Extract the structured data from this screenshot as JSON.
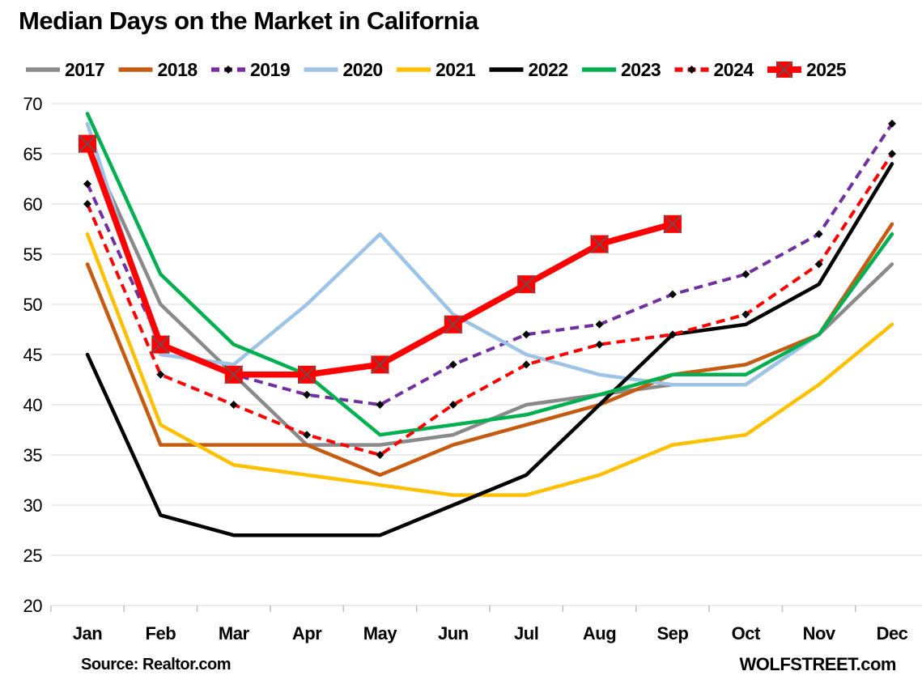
{
  "title": "Median Days on the Market in California",
  "footer": {
    "source": "Source: Realtor.com",
    "brand": "WOLFSTREET.com"
  },
  "chart_data": {
    "type": "line",
    "title": "Median Days on the Market in California",
    "xlabel": "",
    "ylabel": "",
    "categories": [
      "Jan",
      "Feb",
      "Mar",
      "Apr",
      "May",
      "Jun",
      "Jul",
      "Aug",
      "Sep",
      "Oct",
      "Nov",
      "Dec"
    ],
    "ylim": [
      20,
      70
    ],
    "ytick_step": 5,
    "grid": true,
    "legend_position": "top",
    "grid_color": "#D9D9D9",
    "tick_color": "#BFBFBF",
    "series": [
      {
        "name": "2017",
        "color": "#8A8A8A",
        "style": "solid",
        "width": 4.5,
        "marker": "none",
        "values": [
          66,
          50,
          43,
          36,
          36,
          37,
          40,
          41,
          42,
          42,
          47,
          54
        ]
      },
      {
        "name": "2018",
        "color": "#C55A11",
        "style": "solid",
        "width": 4.5,
        "marker": "none",
        "values": [
          54,
          36,
          36,
          36,
          33,
          36,
          38,
          40,
          43,
          44,
          47,
          58
        ]
      },
      {
        "name": "2019",
        "color": "#7030A0",
        "style": "dashed",
        "width": 4,
        "marker": "diamond",
        "marker_color": "#000000",
        "values": [
          62,
          46,
          43,
          41,
          40,
          44,
          47,
          48,
          51,
          53,
          57,
          68
        ]
      },
      {
        "name": "2020",
        "color": "#9DC3E6",
        "style": "solid",
        "width": 4.5,
        "marker": "none",
        "values": [
          68,
          45,
          44,
          50,
          57,
          49,
          45,
          43,
          42,
          42,
          47,
          57
        ]
      },
      {
        "name": "2021",
        "color": "#FFC000",
        "style": "solid",
        "width": 4.5,
        "marker": "none",
        "values": [
          57,
          38,
          34,
          33,
          32,
          31,
          31,
          33,
          36,
          37,
          42,
          48
        ]
      },
      {
        "name": "2022",
        "color": "#000000",
        "style": "solid",
        "width": 4.5,
        "marker": "none",
        "values": [
          45,
          29,
          27,
          27,
          27,
          30,
          33,
          40,
          47,
          48,
          52,
          64
        ]
      },
      {
        "name": "2023",
        "color": "#00B050",
        "style": "solid",
        "width": 4.5,
        "marker": "none",
        "values": [
          69,
          53,
          46,
          43,
          37,
          38,
          39,
          41,
          43,
          43,
          47,
          57
        ]
      },
      {
        "name": "2024",
        "color": "#FF0000",
        "style": "dashed",
        "width": 4,
        "marker": "diamond",
        "marker_color": "#000000",
        "values": [
          60,
          43,
          40,
          37,
          35,
          40,
          44,
          46,
          47,
          49,
          54,
          65
        ]
      },
      {
        "name": "2025",
        "color": "#FF0000",
        "style": "solid",
        "width": 7.5,
        "marker": "square-x",
        "marker_color": "#FF0000",
        "marker_x_color": "#595959",
        "values": [
          66,
          46,
          43,
          43,
          44,
          48,
          52,
          56,
          58
        ]
      }
    ]
  }
}
